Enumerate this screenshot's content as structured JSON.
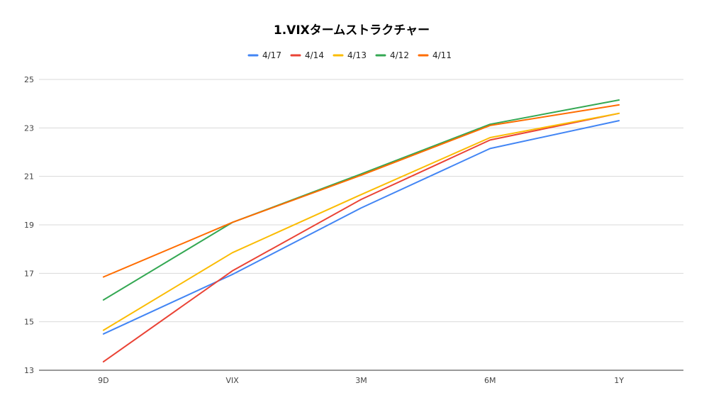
{
  "chart_data": {
    "type": "line",
    "title": "1.VIXタームストラクチャー",
    "xlabel": "",
    "ylabel": "",
    "categories": [
      "9D",
      "VIX",
      "3M",
      "6M",
      "1Y"
    ],
    "ylim": [
      13,
      25
    ],
    "yticks": [
      13,
      15,
      17,
      19,
      21,
      23,
      25
    ],
    "grid": true,
    "legend_position": "top",
    "series": [
      {
        "name": "4/17",
        "color": "#4285f4",
        "values": [
          14.5,
          16.95,
          19.7,
          22.15,
          23.3
        ]
      },
      {
        "name": "4/14",
        "color": "#ea4335",
        "values": [
          13.35,
          17.1,
          20.05,
          22.5,
          23.6
        ]
      },
      {
        "name": "4/13",
        "color": "#fbbc04",
        "values": [
          14.65,
          17.85,
          20.25,
          22.6,
          23.6
        ]
      },
      {
        "name": "4/12",
        "color": "#34a853",
        "values": [
          15.9,
          19.1,
          21.1,
          23.15,
          24.15
        ]
      },
      {
        "name": "4/11",
        "color": "#ff6d01",
        "values": [
          16.85,
          19.1,
          21.05,
          23.1,
          23.95
        ]
      }
    ]
  }
}
